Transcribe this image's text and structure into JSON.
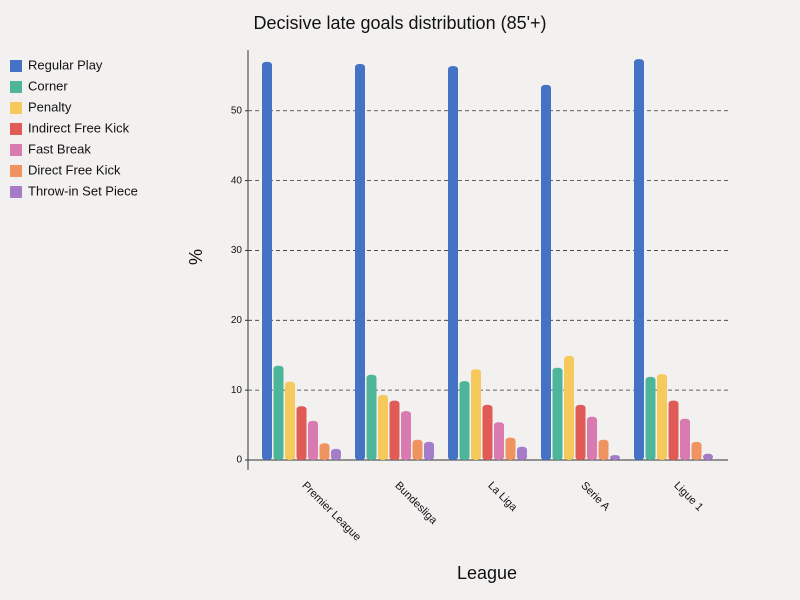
{
  "chart_data": {
    "type": "bar",
    "title": "Decisive late goals distribution (85'+)",
    "x_label": "League",
    "y_label": "%",
    "categories": [
      "Premier League",
      "Bundesliga",
      "La Liga",
      "Serie A",
      "Ligue 1"
    ],
    "series": [
      {
        "name": "Regular Play",
        "color": "#4472c4",
        "values": [
          57.0,
          56.7,
          56.4,
          53.7,
          57.4
        ]
      },
      {
        "name": "Corner",
        "color": "#4cb59a",
        "values": [
          13.5,
          12.2,
          11.3,
          13.2,
          11.9
        ]
      },
      {
        "name": "Penalty",
        "color": "#f5c95c",
        "values": [
          11.2,
          9.3,
          13.0,
          14.9,
          12.3
        ]
      },
      {
        "name": "Indirect Free Kick",
        "color": "#e05a56",
        "values": [
          7.7,
          8.5,
          7.9,
          7.9,
          8.5
        ]
      },
      {
        "name": "Fast Break",
        "color": "#d97bb0",
        "values": [
          5.6,
          7.0,
          5.4,
          6.2,
          5.9
        ]
      },
      {
        "name": "Direct Free Kick",
        "color": "#ef9461",
        "values": [
          2.4,
          2.9,
          3.2,
          2.9,
          2.6
        ]
      },
      {
        "name": "Throw-in Set Piece",
        "color": "#a57cc9",
        "values": [
          1.6,
          2.6,
          1.9,
          0.7,
          0.9
        ]
      }
    ],
    "ylim": [
      0,
      58.7
    ],
    "yticks": [
      0,
      10,
      20,
      30,
      40,
      50
    ],
    "grid": true,
    "legend": "left"
  }
}
